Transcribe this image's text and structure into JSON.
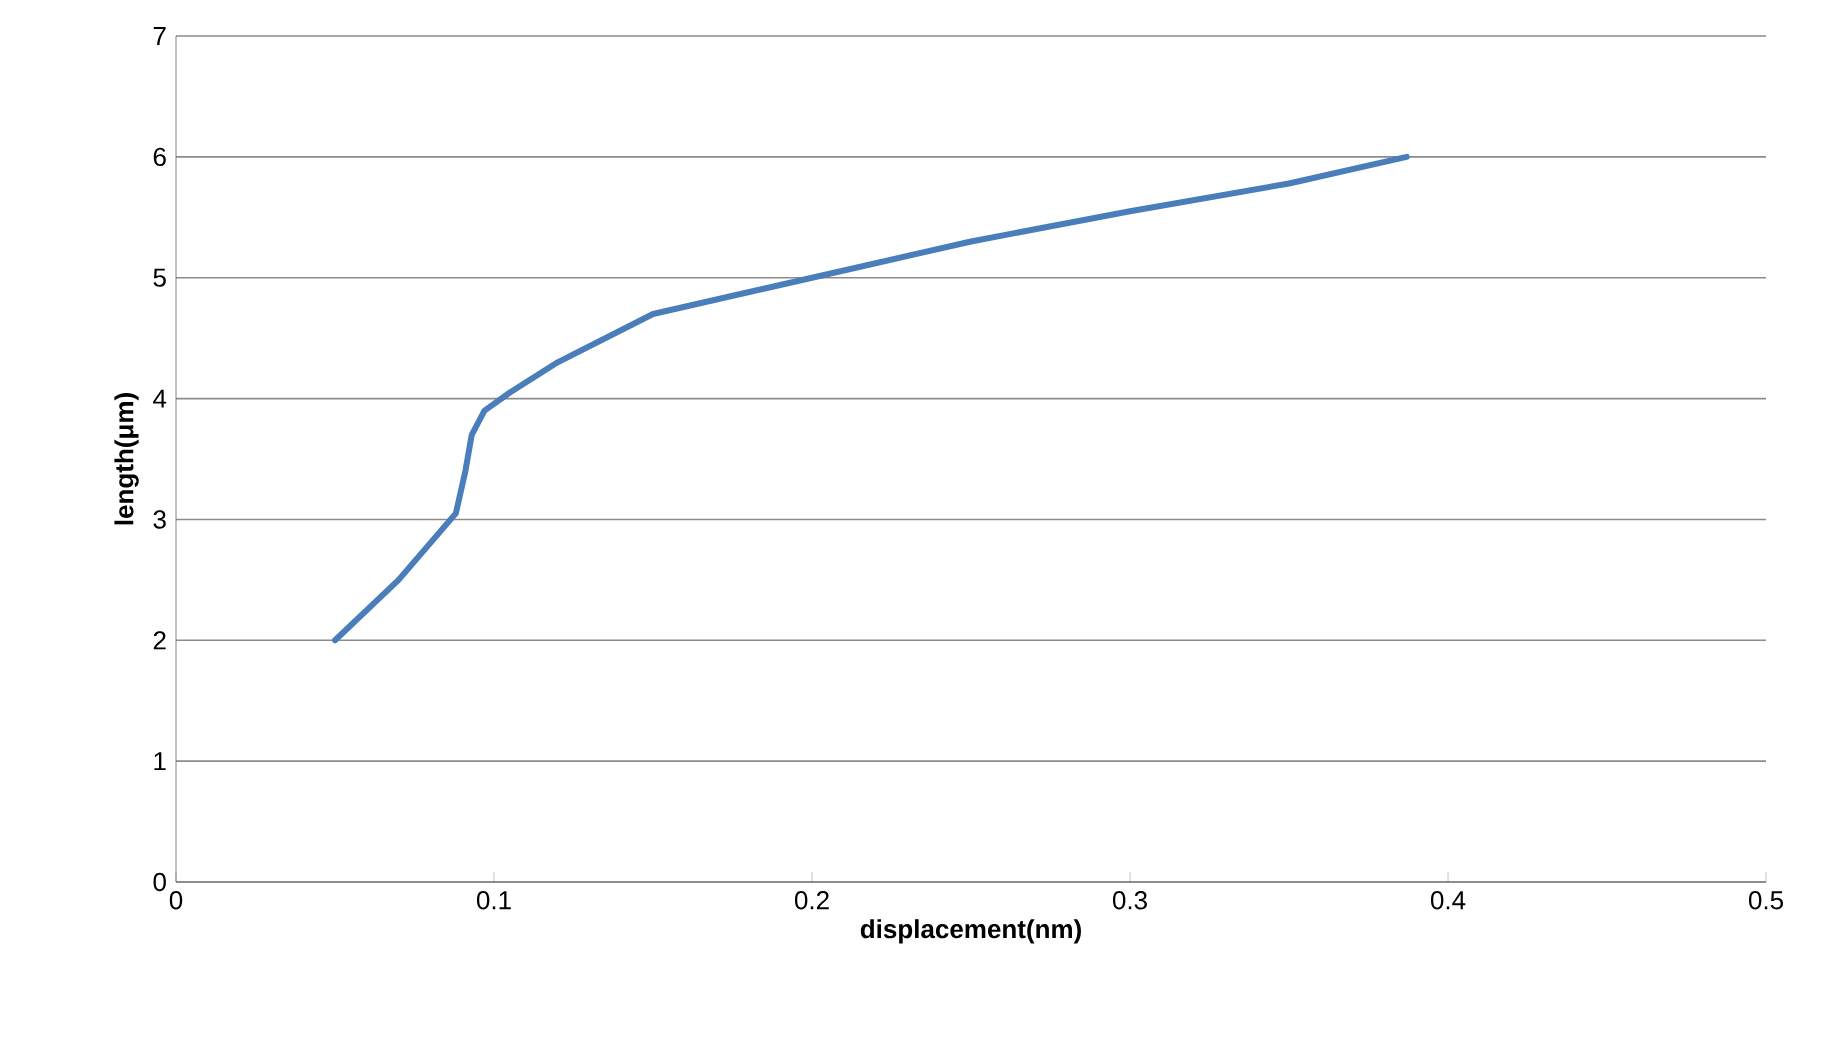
{
  "chart_data": {
    "type": "line",
    "xlabel": "displacement(nm)",
    "ylabel": "length(μm)",
    "series": [
      {
        "color": "#4a7ebb",
        "x": [
          0.05,
          0.07,
          0.088,
          0.091,
          0.093,
          0.097,
          0.105,
          0.12,
          0.15,
          0.2,
          0.25,
          0.3,
          0.35,
          0.387
        ],
        "values": [
          2,
          2.5,
          3.05,
          3.4,
          3.7,
          3.9,
          4.05,
          4.3,
          4.7,
          5,
          5.3,
          5.55,
          5.78,
          6.0
        ]
      }
    ],
    "xlim": [
      0,
      0.5
    ],
    "ylim": [
      0,
      7
    ],
    "xticks": [
      0,
      0.1,
      0.2,
      0.3,
      0.4,
      0.5
    ],
    "yticks": [
      0,
      1,
      2,
      3,
      4,
      5,
      6,
      7
    ],
    "grid": "y",
    "marker": "none",
    "line_style": "solid"
  }
}
